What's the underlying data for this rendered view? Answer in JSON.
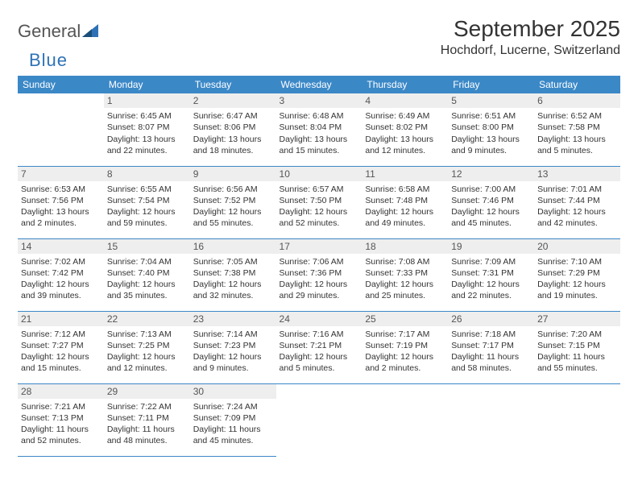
{
  "logo": {
    "text1": "General",
    "text2": "Blue"
  },
  "title": "September 2025",
  "location": "Hochdorf, Lucerne, Switzerland",
  "colors": {
    "header_bg": "#3b88c7",
    "header_fg": "#ffffff",
    "daynum_bg": "#eeeeee",
    "border": "#3b88c7",
    "logo_blue": "#2e72b5"
  },
  "weekdays": [
    "Sunday",
    "Monday",
    "Tuesday",
    "Wednesday",
    "Thursday",
    "Friday",
    "Saturday"
  ],
  "weeks": [
    [
      null,
      {
        "n": "1",
        "sunrise": "Sunrise: 6:45 AM",
        "sunset": "Sunset: 8:07 PM",
        "day1": "Daylight: 13 hours",
        "day2": "and 22 minutes."
      },
      {
        "n": "2",
        "sunrise": "Sunrise: 6:47 AM",
        "sunset": "Sunset: 8:06 PM",
        "day1": "Daylight: 13 hours",
        "day2": "and 18 minutes."
      },
      {
        "n": "3",
        "sunrise": "Sunrise: 6:48 AM",
        "sunset": "Sunset: 8:04 PM",
        "day1": "Daylight: 13 hours",
        "day2": "and 15 minutes."
      },
      {
        "n": "4",
        "sunrise": "Sunrise: 6:49 AM",
        "sunset": "Sunset: 8:02 PM",
        "day1": "Daylight: 13 hours",
        "day2": "and 12 minutes."
      },
      {
        "n": "5",
        "sunrise": "Sunrise: 6:51 AM",
        "sunset": "Sunset: 8:00 PM",
        "day1": "Daylight: 13 hours",
        "day2": "and 9 minutes."
      },
      {
        "n": "6",
        "sunrise": "Sunrise: 6:52 AM",
        "sunset": "Sunset: 7:58 PM",
        "day1": "Daylight: 13 hours",
        "day2": "and 5 minutes."
      }
    ],
    [
      {
        "n": "7",
        "sunrise": "Sunrise: 6:53 AM",
        "sunset": "Sunset: 7:56 PM",
        "day1": "Daylight: 13 hours",
        "day2": "and 2 minutes."
      },
      {
        "n": "8",
        "sunrise": "Sunrise: 6:55 AM",
        "sunset": "Sunset: 7:54 PM",
        "day1": "Daylight: 12 hours",
        "day2": "and 59 minutes."
      },
      {
        "n": "9",
        "sunrise": "Sunrise: 6:56 AM",
        "sunset": "Sunset: 7:52 PM",
        "day1": "Daylight: 12 hours",
        "day2": "and 55 minutes."
      },
      {
        "n": "10",
        "sunrise": "Sunrise: 6:57 AM",
        "sunset": "Sunset: 7:50 PM",
        "day1": "Daylight: 12 hours",
        "day2": "and 52 minutes."
      },
      {
        "n": "11",
        "sunrise": "Sunrise: 6:58 AM",
        "sunset": "Sunset: 7:48 PM",
        "day1": "Daylight: 12 hours",
        "day2": "and 49 minutes."
      },
      {
        "n": "12",
        "sunrise": "Sunrise: 7:00 AM",
        "sunset": "Sunset: 7:46 PM",
        "day1": "Daylight: 12 hours",
        "day2": "and 45 minutes."
      },
      {
        "n": "13",
        "sunrise": "Sunrise: 7:01 AM",
        "sunset": "Sunset: 7:44 PM",
        "day1": "Daylight: 12 hours",
        "day2": "and 42 minutes."
      }
    ],
    [
      {
        "n": "14",
        "sunrise": "Sunrise: 7:02 AM",
        "sunset": "Sunset: 7:42 PM",
        "day1": "Daylight: 12 hours",
        "day2": "and 39 minutes."
      },
      {
        "n": "15",
        "sunrise": "Sunrise: 7:04 AM",
        "sunset": "Sunset: 7:40 PM",
        "day1": "Daylight: 12 hours",
        "day2": "and 35 minutes."
      },
      {
        "n": "16",
        "sunrise": "Sunrise: 7:05 AM",
        "sunset": "Sunset: 7:38 PM",
        "day1": "Daylight: 12 hours",
        "day2": "and 32 minutes."
      },
      {
        "n": "17",
        "sunrise": "Sunrise: 7:06 AM",
        "sunset": "Sunset: 7:36 PM",
        "day1": "Daylight: 12 hours",
        "day2": "and 29 minutes."
      },
      {
        "n": "18",
        "sunrise": "Sunrise: 7:08 AM",
        "sunset": "Sunset: 7:33 PM",
        "day1": "Daylight: 12 hours",
        "day2": "and 25 minutes."
      },
      {
        "n": "19",
        "sunrise": "Sunrise: 7:09 AM",
        "sunset": "Sunset: 7:31 PM",
        "day1": "Daylight: 12 hours",
        "day2": "and 22 minutes."
      },
      {
        "n": "20",
        "sunrise": "Sunrise: 7:10 AM",
        "sunset": "Sunset: 7:29 PM",
        "day1": "Daylight: 12 hours",
        "day2": "and 19 minutes."
      }
    ],
    [
      {
        "n": "21",
        "sunrise": "Sunrise: 7:12 AM",
        "sunset": "Sunset: 7:27 PM",
        "day1": "Daylight: 12 hours",
        "day2": "and 15 minutes."
      },
      {
        "n": "22",
        "sunrise": "Sunrise: 7:13 AM",
        "sunset": "Sunset: 7:25 PM",
        "day1": "Daylight: 12 hours",
        "day2": "and 12 minutes."
      },
      {
        "n": "23",
        "sunrise": "Sunrise: 7:14 AM",
        "sunset": "Sunset: 7:23 PM",
        "day1": "Daylight: 12 hours",
        "day2": "and 9 minutes."
      },
      {
        "n": "24",
        "sunrise": "Sunrise: 7:16 AM",
        "sunset": "Sunset: 7:21 PM",
        "day1": "Daylight: 12 hours",
        "day2": "and 5 minutes."
      },
      {
        "n": "25",
        "sunrise": "Sunrise: 7:17 AM",
        "sunset": "Sunset: 7:19 PM",
        "day1": "Daylight: 12 hours",
        "day2": "and 2 minutes."
      },
      {
        "n": "26",
        "sunrise": "Sunrise: 7:18 AM",
        "sunset": "Sunset: 7:17 PM",
        "day1": "Daylight: 11 hours",
        "day2": "and 58 minutes."
      },
      {
        "n": "27",
        "sunrise": "Sunrise: 7:20 AM",
        "sunset": "Sunset: 7:15 PM",
        "day1": "Daylight: 11 hours",
        "day2": "and 55 minutes."
      }
    ],
    [
      {
        "n": "28",
        "sunrise": "Sunrise: 7:21 AM",
        "sunset": "Sunset: 7:13 PM",
        "day1": "Daylight: 11 hours",
        "day2": "and 52 minutes."
      },
      {
        "n": "29",
        "sunrise": "Sunrise: 7:22 AM",
        "sunset": "Sunset: 7:11 PM",
        "day1": "Daylight: 11 hours",
        "day2": "and 48 minutes."
      },
      {
        "n": "30",
        "sunrise": "Sunrise: 7:24 AM",
        "sunset": "Sunset: 7:09 PM",
        "day1": "Daylight: 11 hours",
        "day2": "and 45 minutes."
      },
      null,
      null,
      null,
      null
    ]
  ]
}
